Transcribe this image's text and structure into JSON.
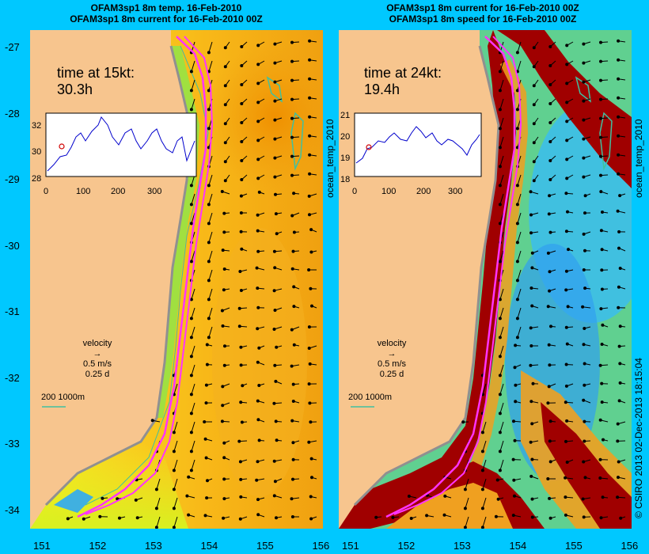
{
  "left_panel": {
    "title_line1": "OFAM3sp1 8m temp. 16-Feb-2010",
    "title_line2": "OFAM3sp1 8m current for 16-Feb-2010 00Z",
    "time_label": "time at 15kt:",
    "time_value": "30.3h",
    "colorbar_label": "ocean_temp_2010",
    "inset": {
      "yticks": [
        "32",
        "30",
        "28"
      ],
      "xticks": [
        "0",
        "100",
        "200",
        "300"
      ]
    }
  },
  "right_panel": {
    "title_line1": "OFAM3sp1 8m current for 16-Feb-2010 00Z",
    "title_line2": "OFAM3sp1 8m speed for 16-Feb-2010 00Z",
    "time_label": "time at 24kt:",
    "time_value": "19.4h",
    "colorbar_label": "ocean_temp_2010",
    "inset": {
      "yticks": [
        "21",
        "20",
        "19",
        "18"
      ],
      "xticks": [
        "0",
        "100",
        "200",
        "300"
      ]
    }
  },
  "velocity_legend": {
    "title": "velocity",
    "speed": "0.5 m/s",
    "duration": "0.25 d"
  },
  "depth_scale": {
    "label": "200  1000m"
  },
  "y_axis": [
    "-27",
    "-28",
    "-29",
    "-30",
    "-31",
    "-32",
    "-33",
    "-34"
  ],
  "x_axis": [
    "151",
    "152",
    "153",
    "154",
    "155",
    "156"
  ],
  "credit": "© CSIRO 2013   02-Dec-2013 18:15:04",
  "colors": {
    "background": "#00c8ff",
    "land": "#f7c58e",
    "track": "#ff33ff",
    "depth_contour": "#40c0a0"
  }
}
